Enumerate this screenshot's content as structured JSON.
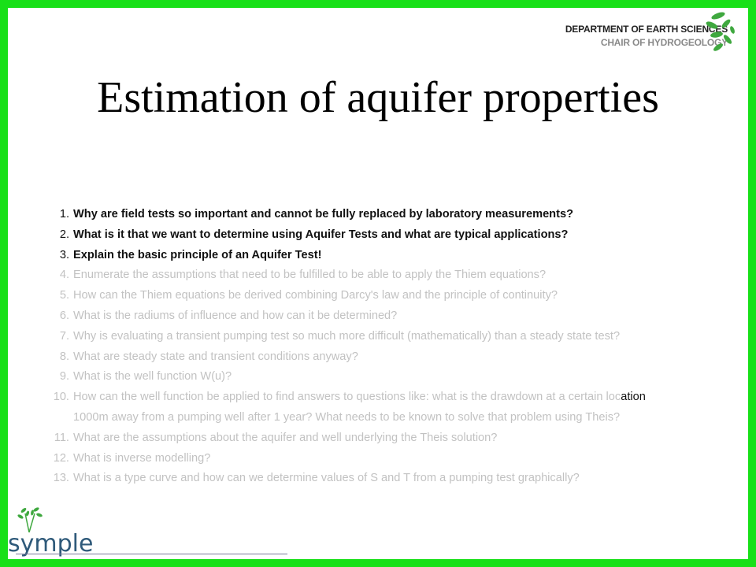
{
  "header": {
    "department": "DEPARTMENT OF EARTH SCIENCES",
    "chair": "CHAIR OF HYDROGEOLOGY"
  },
  "title": "Estimation of aquifer properties",
  "questions": [
    {
      "num": "1.",
      "text": "Why are field tests so important and cannot be fully  replaced by laboratory measurements?"
    },
    {
      "num": "2.",
      "text": "What is it that we want to determine using Aquifer Tests and what are typical applications?"
    },
    {
      "num": "3.",
      "text": "Explain the basic principle of an Aquifer Test!"
    },
    {
      "num": "4.",
      "text": "Enumerate the assumptions that need to be fulfilled to be able to apply the Thiem equations?"
    },
    {
      "num": "5.",
      "text": "How can the Thiem equations be derived combining Darcy's law and the principle of continuity?"
    },
    {
      "num": "6.",
      "text": "What is the radiums of influence and how can it be determined?"
    },
    {
      "num": "7.",
      "text": "Why is evaluating a transient pumping test so much more difficult (mathematically) than a steady state test?"
    },
    {
      "num": "8.",
      "text": "What are steady state and transient conditions anyway?"
    },
    {
      "num": "9.",
      "text": "What is the well function W(u)?"
    },
    {
      "num": "10.",
      "text": "How can the well function be applied to find answers to questions like: what is the drawdown at a certain loc",
      "text_end": "ation"
    },
    {
      "num": "",
      "text": "1000m away from a pumping well after 1 year? What needs to be known to solve that problem using Theis?"
    },
    {
      "num": "11.",
      "text": "What are the assumptions about the aquifer and well underlying the Theis solution?"
    },
    {
      "num": "12.",
      "text": "What is inverse modelling?"
    },
    {
      "num": "13.",
      "text": "What is a type curve and how can we determine values of S and T from a pumping test graphically?"
    }
  ],
  "logo": {
    "text": "symple"
  },
  "colors": {
    "border": "#18e018",
    "leaf": "#3fa83f",
    "logo_text": "#2f5a7a"
  }
}
